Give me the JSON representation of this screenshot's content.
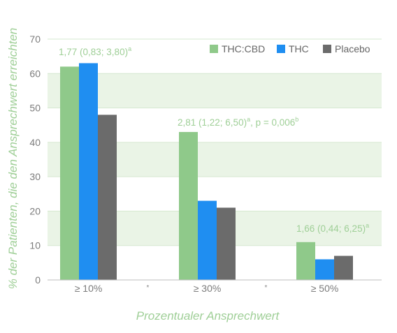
{
  "chart_data": {
    "type": "bar",
    "categories": [
      "≥ 10%",
      "≥ 30%",
      "≥ 50%"
    ],
    "series": [
      {
        "name": "THC:CBD",
        "values": [
          62,
          43,
          11
        ],
        "color": "#8fc98a"
      },
      {
        "name": "THC",
        "values": [
          63,
          23,
          6
        ],
        "color": "#1f8ef1"
      },
      {
        "name": "Placebo",
        "values": [
          48,
          21,
          7
        ],
        "color": "#6b6b6b"
      }
    ],
    "xlabel": "Prozentualer Ansprechwert",
    "ylabel": "% der Patienten, die den Ansprechwert erreichten",
    "ylim": [
      0,
      70
    ],
    "yticks": [
      0,
      10,
      20,
      30,
      40,
      50,
      60,
      70
    ],
    "grid": true,
    "band_color": "#eaf4e6",
    "legend_position": "top-right",
    "annotations": [
      {
        "category": "≥ 10%",
        "text": "1,77 (0,83; 3,80)",
        "sup": "a"
      },
      {
        "category": "≥ 30%",
        "text": "2,81 (1,22; 6,50)",
        "sup": "a",
        "tail": ", p = 0,006",
        "tail_sup": "b"
      },
      {
        "category": "≥ 50%",
        "text": "1,66 (0,44; 6,25)",
        "sup": "a"
      }
    ],
    "separator_marks": [
      "*",
      "*"
    ]
  }
}
